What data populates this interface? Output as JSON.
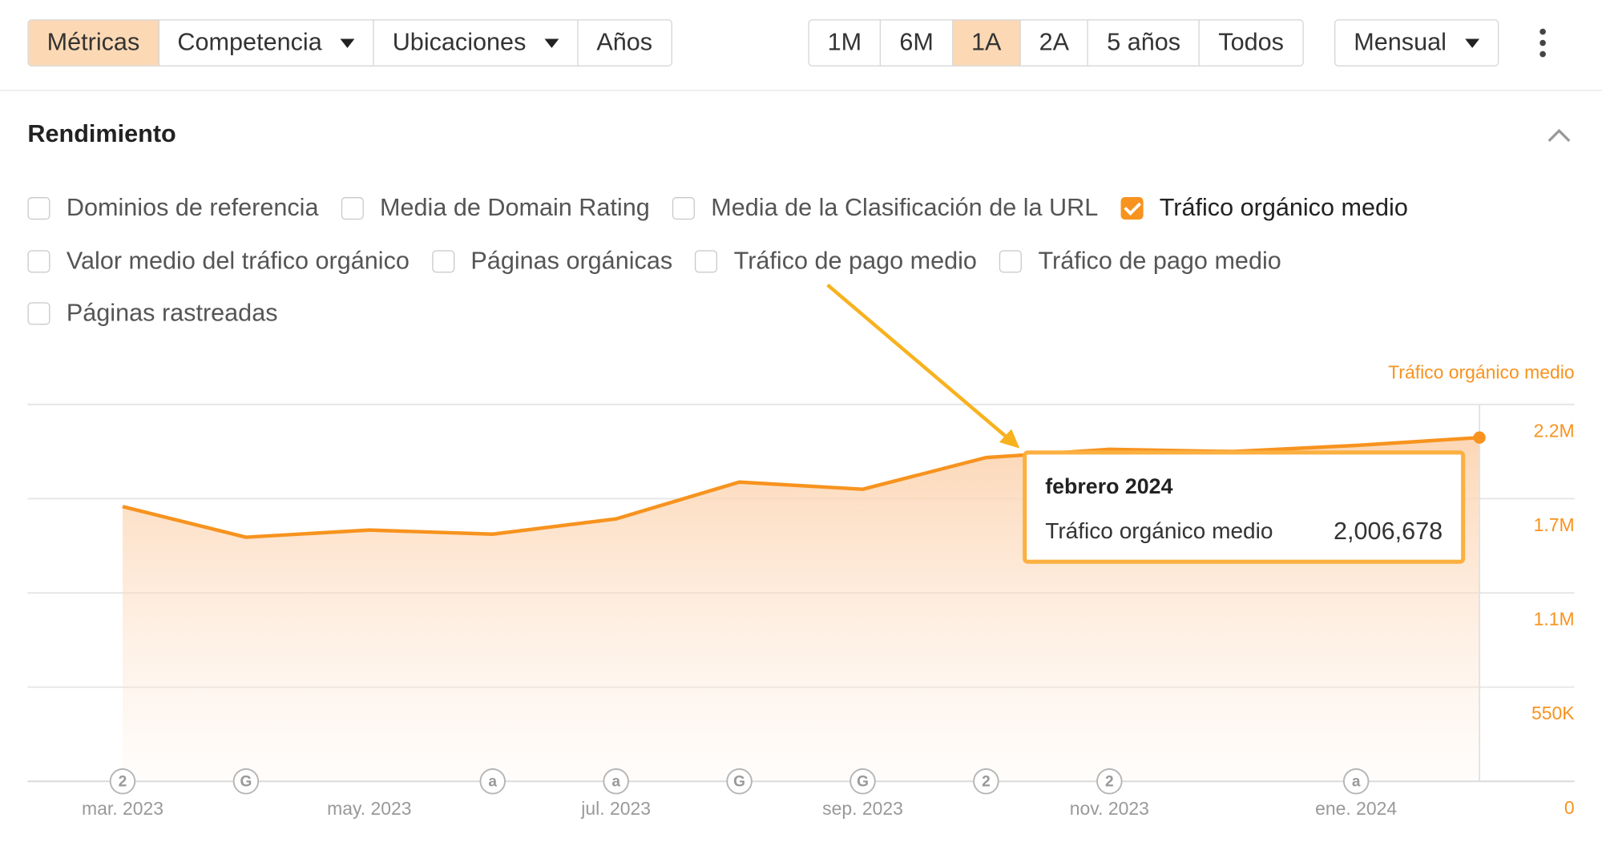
{
  "toolbar": {
    "tabs": [
      "Métricas",
      "Competencia",
      "Ubicaciones",
      "Años"
    ],
    "ranges": [
      "1M",
      "6M",
      "1A",
      "2A",
      "5 años",
      "Todos"
    ],
    "interval": "Mensual"
  },
  "section": {
    "title": "Rendimiento",
    "metrics": [
      [
        {
          "label": "Dominios de referencia",
          "checked": false
        },
        {
          "label": "Media de Domain Rating",
          "checked": false
        },
        {
          "label": "Media de la Clasificación de la URL",
          "checked": false
        },
        {
          "label": "Tráfico orgánico medio",
          "checked": true
        }
      ],
      [
        {
          "label": "Valor medio del tráfico orgánico",
          "checked": false
        },
        {
          "label": "Páginas orgánicas",
          "checked": false
        },
        {
          "label": "Tráfico de pago medio",
          "checked": false
        },
        {
          "label": "Tráfico de pago medio",
          "checked": false
        }
      ],
      [
        {
          "label": "Páginas rastreadas",
          "checked": false
        }
      ]
    ]
  },
  "chart_data": {
    "type": "area",
    "categories": [
      "mar. 2023",
      null,
      "may. 2023",
      null,
      "jul. 2023",
      null,
      "sep. 2023",
      null,
      "nov. 2023",
      null,
      "ene. 2024",
      null
    ],
    "series": [
      {
        "name": "Tráfico orgánico medio",
        "color": "#f7931e",
        "values": [
          1604000,
          1425000,
          1467000,
          1443000,
          1532000,
          1747000,
          1705000,
          1890000,
          1938000,
          1925000,
          1961000,
          2006678
        ]
      }
    ],
    "event_markers": [
      "2",
      "G",
      null,
      "a",
      "a",
      "G",
      "G",
      "2",
      "2",
      null,
      "a",
      null
    ],
    "ylim": [
      0,
      2200000
    ],
    "yticks": [
      0,
      {
        "value": 550000,
        "label": "550K"
      },
      {
        "value": 1100000,
        "label": "1.1M"
      },
      {
        "value": 1650000,
        "label": "1.7M"
      },
      {
        "value": 2200000,
        "label": "2.2M"
      }
    ],
    "grid": true,
    "tooltip": {
      "title": "febrero 2024",
      "value_label": "2,006,678"
    }
  }
}
